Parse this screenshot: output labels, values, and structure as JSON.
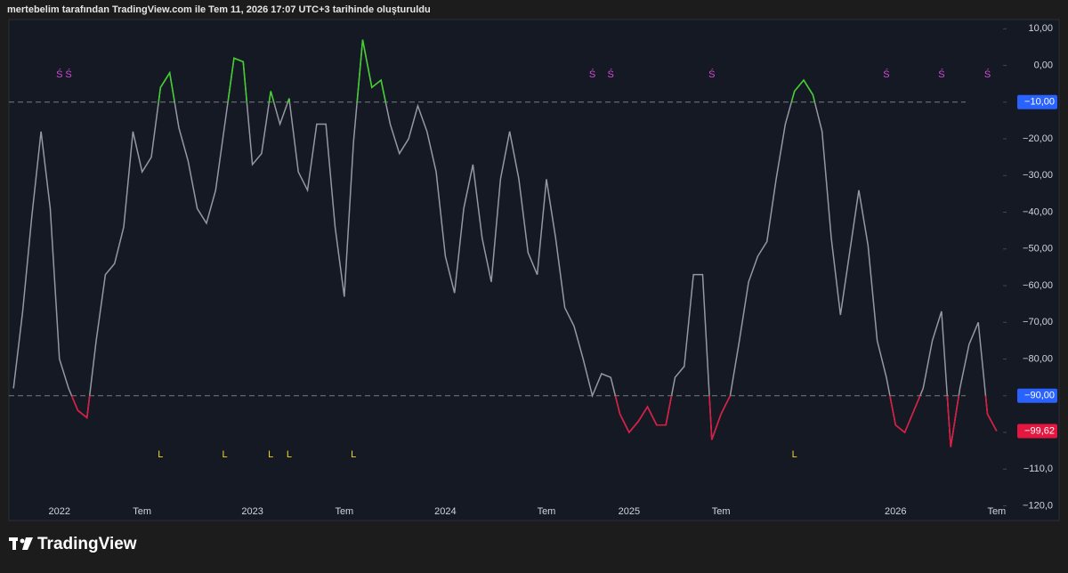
{
  "chart_data": {
    "type": "line",
    "title": "mertebelim tarafından TradingView.com ile Tem 11, 2026 17:07 UTC+3 tarihinde oluşturuldu",
    "brand": "TradingView",
    "categories": [
      null,
      null,
      null,
      null,
      null,
      "2022",
      null,
      null,
      null,
      null,
      null,
      null,
      null,
      null,
      "Tem",
      null,
      null,
      null,
      null,
      null,
      null,
      null,
      null,
      null,
      null,
      null,
      "2023",
      null,
      null,
      null,
      null,
      null,
      null,
      null,
      null,
      null,
      "Tem",
      null,
      null,
      null,
      null,
      null,
      null,
      null,
      null,
      null,
      null,
      "2024",
      null,
      null,
      null,
      null,
      null,
      null,
      null,
      null,
      null,
      null,
      "Tem",
      null,
      null,
      null,
      null,
      null,
      null,
      null,
      null,
      "2025",
      null,
      null,
      null,
      null,
      null,
      null,
      null,
      null,
      null,
      "Tem",
      null,
      null,
      null,
      null,
      null,
      null,
      null,
      null,
      null,
      null,
      null,
      null,
      null,
      null,
      null,
      null,
      null,
      null,
      "2026",
      null,
      null,
      null,
      null,
      null,
      null,
      null,
      null,
      null,
      null,
      "Tem"
    ],
    "series": [
      {
        "color": "#9598a1",
        "values": [
          -88,
          -67,
          -41,
          -18,
          -39,
          -80,
          -88,
          -94,
          -96,
          -75,
          -57,
          -54,
          -44,
          -18,
          -29,
          -25,
          -6,
          -2,
          -17,
          -26,
          -39,
          -43,
          -34,
          -16,
          2,
          1,
          -27,
          -24,
          -7,
          -16,
          -9,
          -29,
          -34,
          -16,
          -16,
          -44,
          -63,
          -21,
          7,
          -6,
          -4,
          -16,
          -24,
          -20,
          -11,
          -18,
          -29,
          -52,
          -62,
          -39,
          -27,
          -47,
          -59,
          -31,
          -18,
          -31,
          -51,
          -57,
          -31,
          -47,
          -66,
          -71,
          -80,
          -90,
          -84,
          -85,
          -95,
          -100,
          -97,
          -93,
          -98,
          -98,
          -85,
          -82,
          -57,
          -57,
          -102,
          -95,
          -90,
          -75,
          -59,
          -52,
          -48,
          -31,
          -16,
          -7,
          -4,
          -8,
          -18,
          -47,
          -68,
          -51,
          -34,
          -49,
          -75,
          -85,
          -98,
          -100,
          -94,
          -88,
          -75,
          -67,
          -104,
          -88,
          -76,
          -70,
          -95,
          -99.62
        ]
      }
    ],
    "last_value_label": "−99,62",
    "above_color": "#3fd12a",
    "below_color": "#e3173f",
    "hlines": [
      {
        "value": -10,
        "label": "−10,00"
      },
      {
        "value": -90,
        "label": "−90,00"
      }
    ],
    "signals": [
      {
        "label": "Ś",
        "at": 5,
        "color": "#d54bd8",
        "position": "top"
      },
      {
        "label": "Ś",
        "at": 6,
        "color": "#d54bd8",
        "position": "top"
      },
      {
        "label": "Ś",
        "at": 63,
        "color": "#d54bd8",
        "position": "top"
      },
      {
        "label": "Ś",
        "at": 65,
        "color": "#d54bd8",
        "position": "top"
      },
      {
        "label": "Ś",
        "at": 76,
        "color": "#d54bd8",
        "position": "top"
      },
      {
        "label": "Ś",
        "at": 95,
        "color": "#d54bd8",
        "position": "top"
      },
      {
        "label": "Ś",
        "at": 101,
        "color": "#d54bd8",
        "position": "top"
      },
      {
        "label": "Ś",
        "at": 106,
        "color": "#d54bd8",
        "position": "top"
      },
      {
        "label": "L",
        "at": 16,
        "color": "#f2d22e",
        "position": "bottom"
      },
      {
        "label": "L",
        "at": 23,
        "color": "#f2d22e",
        "position": "bottom"
      },
      {
        "label": "L",
        "at": 28,
        "color": "#f2d22e",
        "position": "bottom"
      },
      {
        "label": "L",
        "at": 30,
        "color": "#f2d22e",
        "position": "bottom"
      },
      {
        "label": "L",
        "at": 37,
        "color": "#f2d22e",
        "position": "bottom"
      },
      {
        "label": "L",
        "at": 85,
        "color": "#f2d22e",
        "position": "bottom"
      }
    ],
    "ylim": [
      12.5,
      -124
    ],
    "yticks": [
      {
        "value": 10,
        "label": "10,00"
      },
      {
        "value": 0,
        "label": "0,00"
      },
      {
        "value": -10,
        "label": "−10,00"
      },
      {
        "value": -20,
        "label": "−20,00"
      },
      {
        "value": -30,
        "label": "−30,00"
      },
      {
        "value": -40,
        "label": "−40,00"
      },
      {
        "value": -50,
        "label": "−50,00"
      },
      {
        "value": -60,
        "label": "−60,00"
      },
      {
        "value": -70,
        "label": "−70,00"
      },
      {
        "value": -80,
        "label": "−80,00"
      },
      {
        "value": -90,
        "label": "−90,00"
      },
      {
        "value": -100,
        "label": "−100,0"
      },
      {
        "value": -110,
        "label": "−110,0"
      },
      {
        "value": -120,
        "label": "−120,0"
      }
    ]
  }
}
